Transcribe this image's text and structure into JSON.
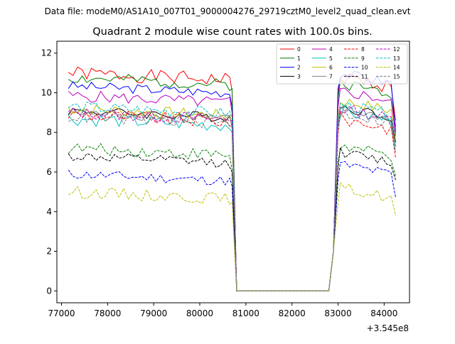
{
  "figure": {
    "suptitle": "Data file: modeM0/AS1A10_007T01_9000004276_29719cztM0_level2_quad_clean.evt",
    "title": "Quadrant 2 module wise count rates with 100.0s bins."
  },
  "chart_data": {
    "type": "line",
    "title": "Quadrant 2 module wise count rates with 100.0s bins.",
    "xlabel": "",
    "ylabel": "",
    "x_offset_label": "+3.545e8",
    "xlim": [
      76900,
      84550
    ],
    "ylim": [
      -0.6,
      12.6
    ],
    "xticks": [
      77000,
      78000,
      79000,
      80000,
      81000,
      82000,
      83000,
      84000
    ],
    "yticks": [
      0,
      2,
      4,
      6,
      8,
      10,
      12
    ],
    "grid": false,
    "legend_placement": "top-right",
    "gap_start": 80700,
    "gap_end": 82900,
    "series": [
      {
        "name": "0",
        "color": "#ff0000",
        "dashed": false,
        "base": 11.0,
        "amp": 0.35,
        "seed": 0,
        "dip": 10.1,
        "post": 10.8,
        "end": 8.6
      },
      {
        "name": "1",
        "color": "#008000",
        "dashed": false,
        "base": 10.75,
        "amp": 0.3,
        "seed": 1,
        "dip": 10.2,
        "post": 10.5,
        "end": 8.3
      },
      {
        "name": "2",
        "color": "#0000ff",
        "dashed": false,
        "base": 10.35,
        "amp": 0.25,
        "seed": 2,
        "dip": 9.3,
        "post": 11.0,
        "end": 8.0
      },
      {
        "name": "3",
        "color": "#000000",
        "dashed": false,
        "base": 9.1,
        "amp": 0.25,
        "seed": 3,
        "dip": 8.3,
        "post": 9.3,
        "end": 7.5
      },
      {
        "name": "4",
        "color": "#bf00bf",
        "dashed": false,
        "base": 9.85,
        "amp": 0.3,
        "seed": 4,
        "dip": 9.0,
        "post": 10.1,
        "end": 7.9
      },
      {
        "name": "5",
        "color": "#00bfbf",
        "dashed": false,
        "base": 8.7,
        "amp": 0.35,
        "seed": 5,
        "dip": 8.0,
        "post": 9.1,
        "end": 7.0
      },
      {
        "name": "6",
        "color": "#bfbf00",
        "dashed": false,
        "base": 9.2,
        "amp": 0.3,
        "seed": 6,
        "dip": 8.4,
        "post": 9.6,
        "end": 7.6
      },
      {
        "name": "7",
        "color": "#808080",
        "dashed": false,
        "base": 9.0,
        "amp": 0.25,
        "seed": 7,
        "dip": 8.2,
        "post": 9.2,
        "end": 7.3
      },
      {
        "name": "8",
        "color": "#ff0000",
        "dashed": true,
        "base": 8.9,
        "amp": 0.35,
        "seed": 8,
        "dip": 8.3,
        "post": 8.7,
        "end": 6.7
      },
      {
        "name": "9",
        "color": "#008000",
        "dashed": true,
        "base": 7.2,
        "amp": 0.3,
        "seed": 9,
        "dip": 6.1,
        "post": 7.3,
        "end": 5.8
      },
      {
        "name": "10",
        "color": "#0000ff",
        "dashed": true,
        "base": 5.9,
        "amp": 0.25,
        "seed": 10,
        "dip": 5.3,
        "post": 6.4,
        "end": 4.7
      },
      {
        "name": "11",
        "color": "#000000",
        "dashed": true,
        "base": 6.8,
        "amp": 0.25,
        "seed": 11,
        "dip": 6.0,
        "post": 7.0,
        "end": 5.6
      },
      {
        "name": "12",
        "color": "#bf00bf",
        "dashed": true,
        "base": 9.0,
        "amp": 0.3,
        "seed": 12,
        "dip": 8.6,
        "post": 9.2,
        "end": 7.8
      },
      {
        "name": "13",
        "color": "#00bfbf",
        "dashed": true,
        "base": 9.3,
        "amp": 0.3,
        "seed": 13,
        "dip": 8.7,
        "post": 9.4,
        "end": 7.9
      },
      {
        "name": "14",
        "color": "#bfbf00",
        "dashed": true,
        "base": 5.0,
        "amp": 0.3,
        "seed": 14,
        "dip": 4.5,
        "post": 5.2,
        "end": 3.8
      },
      {
        "name": "15",
        "color": "#808080",
        "dashed": true,
        "base": 8.8,
        "amp": 0.3,
        "seed": 15,
        "dip": 8.3,
        "post": 9.0,
        "end": 7.2
      }
    ]
  }
}
